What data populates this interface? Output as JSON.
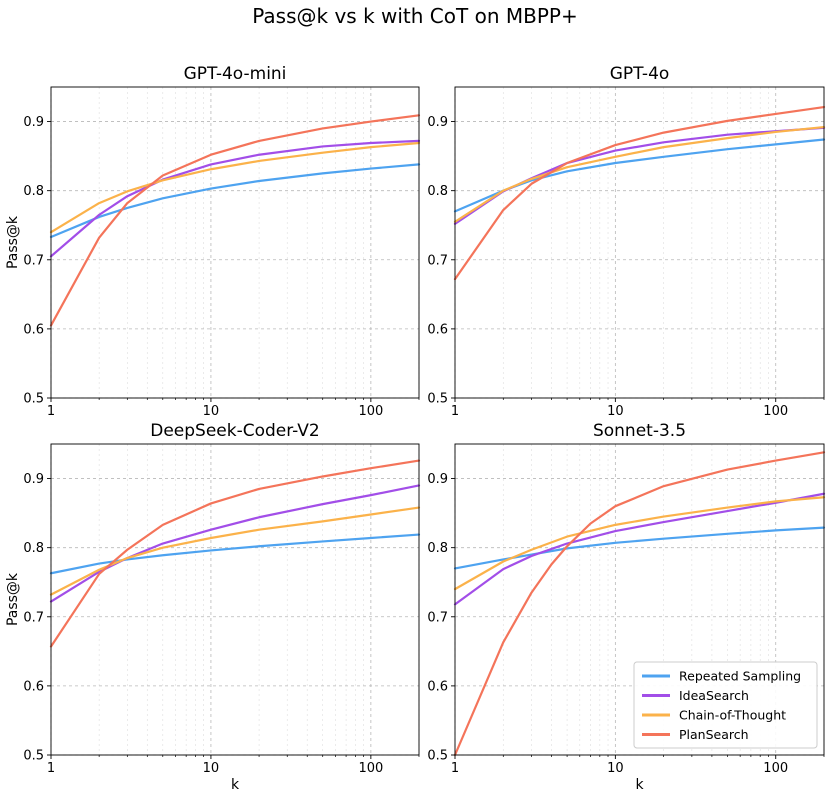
{
  "figure_title": "Pass@k vs k with CoT on MBPP+",
  "colors": {
    "Repeated Sampling": "#4ea3f0",
    "IdeaSearch": "#a24ee8",
    "Chain-of-Thought": "#fbb24a",
    "PlanSearch": "#f4745a"
  },
  "legend": {
    "location": "lower-right",
    "entries": [
      "Repeated Sampling",
      "IdeaSearch",
      "Chain-of-Thought",
      "PlanSearch"
    ]
  },
  "chart_data": [
    {
      "type": "line",
      "title": "GPT-4o-mini",
      "xlabel": "",
      "ylabel": "Pass@k",
      "xscale": "log",
      "xlim": [
        1,
        200
      ],
      "ylim": [
        0.5,
        0.95
      ],
      "xticks": [
        1,
        10,
        100
      ],
      "xtick_labels": [
        "1",
        "10",
        "100"
      ],
      "yticks": [
        0.5,
        0.6,
        0.7,
        0.8,
        0.9
      ],
      "ytick_labels": [
        "0.5",
        "0.6",
        "0.7",
        "0.8",
        "0.9"
      ],
      "grid": true,
      "series": [
        {
          "name": "Repeated Sampling",
          "x": [
            1,
            2,
            3,
            5,
            10,
            20,
            50,
            100,
            200
          ],
          "values": [
            0.733,
            0.762,
            0.775,
            0.789,
            0.803,
            0.814,
            0.825,
            0.832,
            0.838
          ]
        },
        {
          "name": "IdeaSearch",
          "x": [
            1,
            2,
            3,
            5,
            10,
            20,
            50,
            100,
            200
          ],
          "values": [
            0.705,
            0.765,
            0.792,
            0.816,
            0.838,
            0.852,
            0.864,
            0.869,
            0.872
          ]
        },
        {
          "name": "Chain-of-Thought",
          "x": [
            1,
            2,
            3,
            5,
            10,
            20,
            50,
            100,
            200
          ],
          "values": [
            0.74,
            0.782,
            0.799,
            0.815,
            0.831,
            0.843,
            0.855,
            0.863,
            0.869
          ]
        },
        {
          "name": "PlanSearch",
          "x": [
            1,
            2,
            3,
            5,
            10,
            20,
            50,
            100,
            200
          ],
          "values": [
            0.605,
            0.732,
            0.782,
            0.822,
            0.852,
            0.872,
            0.89,
            0.9,
            0.909
          ]
        }
      ]
    },
    {
      "type": "line",
      "title": "GPT-4o",
      "xlabel": "",
      "ylabel": "",
      "xscale": "log",
      "xlim": [
        1,
        200
      ],
      "ylim": [
        0.5,
        0.95
      ],
      "xticks": [
        1,
        10,
        100
      ],
      "xtick_labels": [
        "1",
        "10",
        "100"
      ],
      "yticks": [
        0.5,
        0.6,
        0.7,
        0.8,
        0.9
      ],
      "ytick_labels": [
        "0.5",
        "0.6",
        "0.7",
        "0.8",
        "0.9"
      ],
      "grid": true,
      "series": [
        {
          "name": "Repeated Sampling",
          "x": [
            1,
            2,
            3,
            5,
            10,
            20,
            50,
            100,
            200
          ],
          "values": [
            0.77,
            0.8,
            0.815,
            0.828,
            0.84,
            0.849,
            0.86,
            0.867,
            0.874
          ]
        },
        {
          "name": "IdeaSearch",
          "x": [
            1,
            2,
            3,
            5,
            10,
            20,
            50,
            100,
            200
          ],
          "values": [
            0.752,
            0.799,
            0.818,
            0.84,
            0.858,
            0.87,
            0.881,
            0.886,
            0.891
          ]
        },
        {
          "name": "Chain-of-Thought",
          "x": [
            1,
            2,
            3,
            5,
            10,
            20,
            50,
            100,
            200
          ],
          "values": [
            0.755,
            0.8,
            0.817,
            0.834,
            0.849,
            0.863,
            0.876,
            0.885,
            0.892
          ]
        },
        {
          "name": "PlanSearch",
          "x": [
            1,
            2,
            3,
            5,
            10,
            20,
            50,
            100,
            200
          ],
          "values": [
            0.672,
            0.772,
            0.81,
            0.84,
            0.866,
            0.884,
            0.901,
            0.911,
            0.921
          ]
        }
      ]
    },
    {
      "type": "line",
      "title": "DeepSeek-Coder-V2",
      "xlabel": "k",
      "ylabel": "Pass@k",
      "xscale": "log",
      "xlim": [
        1,
        200
      ],
      "ylim": [
        0.5,
        0.95
      ],
      "xticks": [
        1,
        10,
        100
      ],
      "xtick_labels": [
        "1",
        "10",
        "100"
      ],
      "yticks": [
        0.5,
        0.6,
        0.7,
        0.8,
        0.9
      ],
      "ytick_labels": [
        "0.5",
        "0.6",
        "0.7",
        "0.8",
        "0.9"
      ],
      "grid": true,
      "series": [
        {
          "name": "Repeated Sampling",
          "x": [
            1,
            2,
            3,
            5,
            10,
            20,
            50,
            100,
            200
          ],
          "values": [
            0.763,
            0.777,
            0.783,
            0.789,
            0.796,
            0.802,
            0.809,
            0.814,
            0.819
          ]
        },
        {
          "name": "IdeaSearch",
          "x": [
            1,
            2,
            3,
            5,
            10,
            20,
            50,
            100,
            200
          ],
          "values": [
            0.722,
            0.765,
            0.785,
            0.806,
            0.826,
            0.844,
            0.863,
            0.876,
            0.89
          ]
        },
        {
          "name": "Chain-of-Thought",
          "x": [
            1,
            2,
            3,
            5,
            10,
            20,
            50,
            100,
            200
          ],
          "values": [
            0.732,
            0.768,
            0.785,
            0.8,
            0.814,
            0.826,
            0.838,
            0.848,
            0.858
          ]
        },
        {
          "name": "PlanSearch",
          "x": [
            1,
            2,
            3,
            5,
            10,
            20,
            50,
            100,
            200
          ],
          "values": [
            0.657,
            0.762,
            0.797,
            0.833,
            0.864,
            0.885,
            0.903,
            0.915,
            0.926
          ]
        }
      ]
    },
    {
      "type": "line",
      "title": "Sonnet-3.5",
      "xlabel": "k",
      "ylabel": "",
      "xscale": "log",
      "xlim": [
        1,
        200
      ],
      "ylim": [
        0.5,
        0.95
      ],
      "xticks": [
        1,
        10,
        100
      ],
      "xtick_labels": [
        "1",
        "10",
        "100"
      ],
      "yticks": [
        0.5,
        0.6,
        0.7,
        0.8,
        0.9
      ],
      "ytick_labels": [
        "0.5",
        "0.6",
        "0.7",
        "0.8",
        "0.9"
      ],
      "grid": true,
      "series": [
        {
          "name": "Repeated Sampling",
          "x": [
            1,
            2,
            3,
            5,
            10,
            20,
            50,
            100,
            200
          ],
          "values": [
            0.77,
            0.783,
            0.79,
            0.799,
            0.807,
            0.813,
            0.82,
            0.825,
            0.829
          ]
        },
        {
          "name": "IdeaSearch",
          "x": [
            1,
            2,
            3,
            5,
            10,
            20,
            50,
            100,
            200
          ],
          "values": [
            0.718,
            0.769,
            0.788,
            0.806,
            0.824,
            0.837,
            0.853,
            0.865,
            0.878
          ]
        },
        {
          "name": "Chain-of-Thought",
          "x": [
            1,
            2,
            3,
            5,
            10,
            20,
            50,
            100,
            200
          ],
          "values": [
            0.74,
            0.78,
            0.797,
            0.816,
            0.833,
            0.845,
            0.858,
            0.867,
            0.873
          ]
        },
        {
          "name": "PlanSearch",
          "x": [
            1,
            2,
            3,
            4,
            5,
            7,
            10,
            20,
            50,
            100,
            200
          ],
          "values": [
            0.5,
            0.663,
            0.735,
            0.776,
            0.802,
            0.835,
            0.86,
            0.889,
            0.913,
            0.926,
            0.938
          ]
        }
      ]
    }
  ]
}
